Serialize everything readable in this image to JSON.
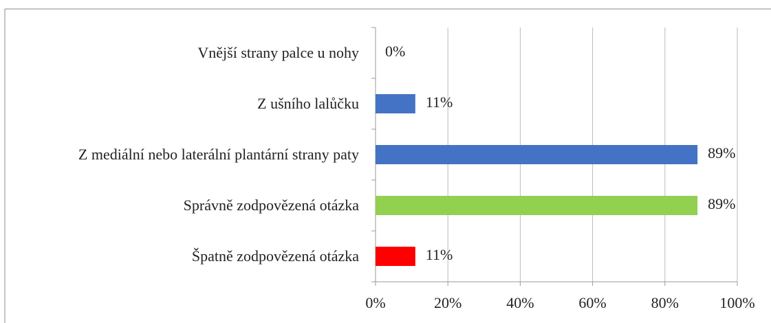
{
  "chart_data": {
    "type": "bar",
    "orientation": "horizontal",
    "categories": [
      "Vnější strany palce u nohy",
      "Z ušního lalůčku",
      "Z mediální nebo laterální plantární strany paty",
      "Správně zodpovězená otázka",
      "Špatně zodpovězená otázka"
    ],
    "values": [
      0,
      11,
      89,
      89,
      11
    ],
    "value_labels": [
      "0%",
      "11%",
      "89%",
      "89%",
      "11%"
    ],
    "colors": [
      "#4472c4",
      "#4472c4",
      "#4472c4",
      "#92d050",
      "#ff0000"
    ],
    "xlim": [
      0,
      100
    ],
    "xticks": [
      {
        "value": 0,
        "label": "0%"
      },
      {
        "value": 20,
        "label": "20%"
      },
      {
        "value": 40,
        "label": "40%"
      },
      {
        "value": 60,
        "label": "60%"
      },
      {
        "value": 80,
        "label": "80%"
      },
      {
        "value": 100,
        "label": "100%"
      }
    ],
    "grid": true
  }
}
